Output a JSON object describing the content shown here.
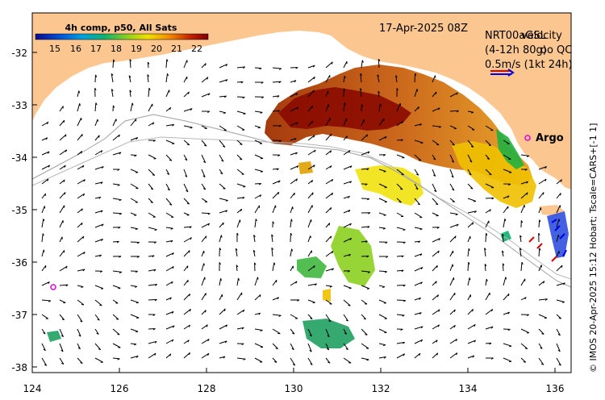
{
  "map": {
    "title_date": "17-Apr-2025 08Z",
    "colorbar": {
      "title": "4h comp, p50, All Sats",
      "ticks": [
        "15",
        "16",
        "17",
        "18",
        "19",
        "20",
        "21",
        "22"
      ],
      "colors": [
        "#0a0a8c",
        "#0050d8",
        "#00a0e0",
        "#10b070",
        "#8ccf20",
        "#f0e000",
        "#f08800",
        "#c02000",
        "#800000"
      ]
    },
    "velocity_note": {
      "line1": "NRT00aGSL",
      "line1b": "velocity",
      "line2": "(4-12h 80g)",
      "line2b": "oo QC",
      "line3": "0.5m/s (1kt 24h)"
    },
    "argo_label": "Argo",
    "side_caption": "© IMOS 20-Apr-2025 15:12 Hobart; Tscale=CARS+[-1 1]",
    "lat_labels": [
      "-32",
      "-33",
      "-34",
      "-35",
      "-36",
      "-37",
      "-38"
    ],
    "lon_labels": [
      "124",
      "126",
      "128",
      "130",
      "132",
      "134",
      "136"
    ],
    "colors": {
      "land": "#fcc690",
      "ocean": "#ffffff",
      "arrow": "#000000",
      "argo": "#e000e0"
    }
  }
}
